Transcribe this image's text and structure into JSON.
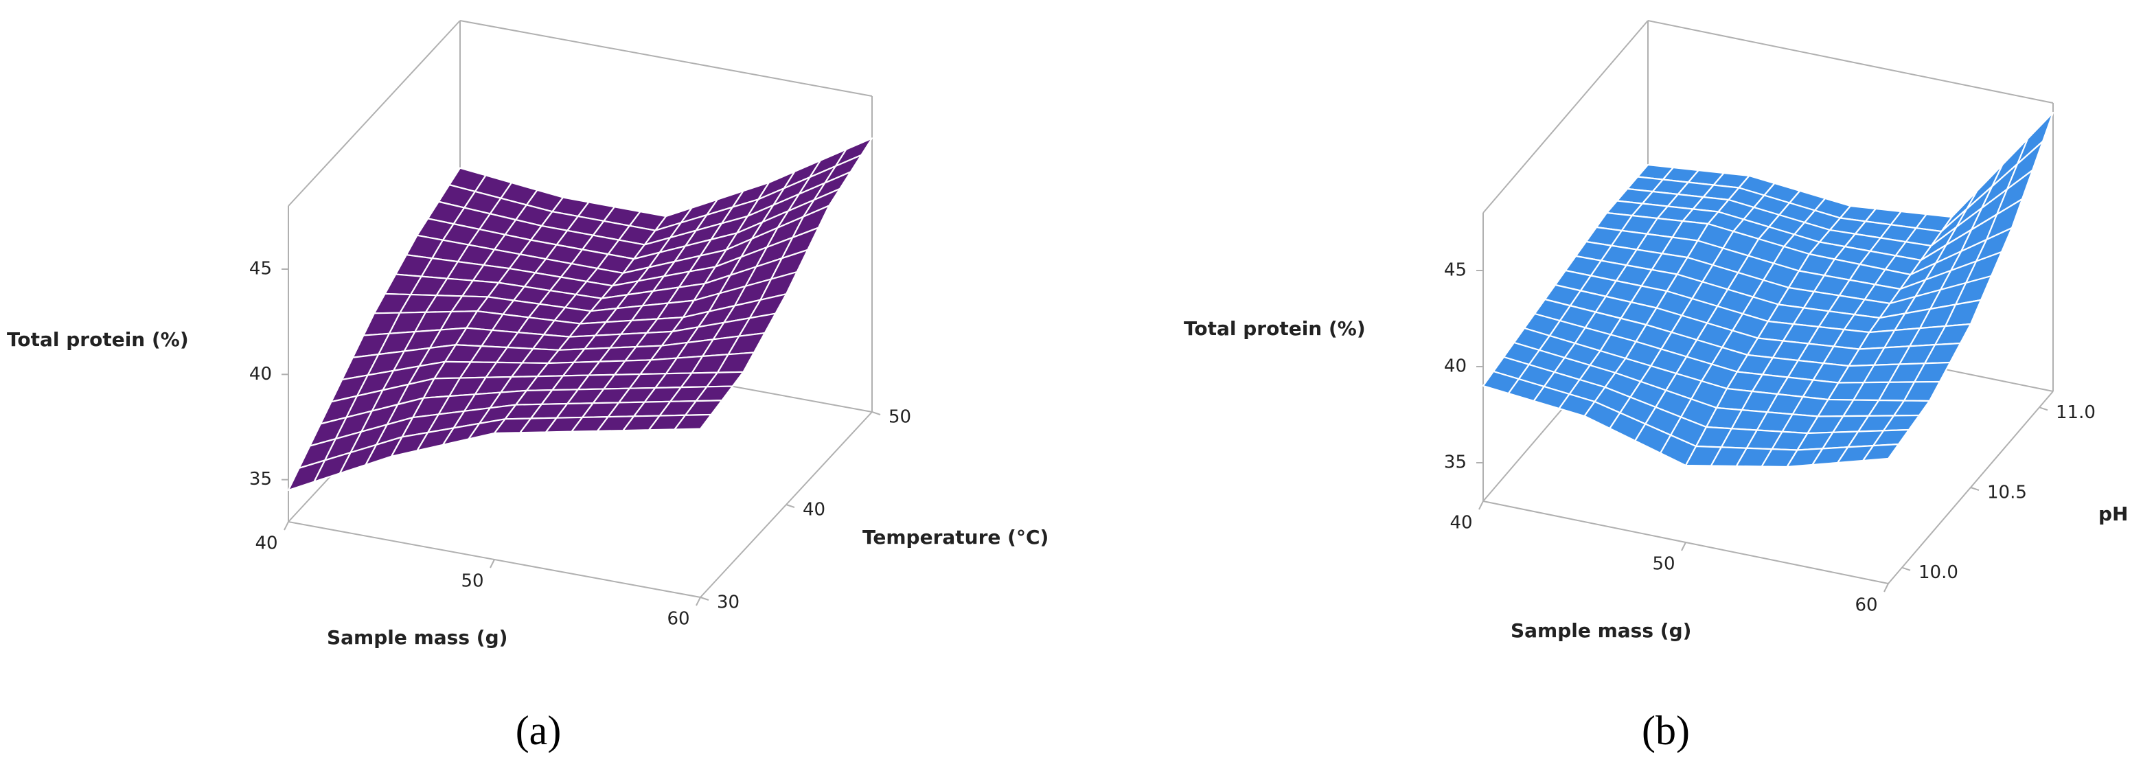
{
  "chart_data": [
    {
      "type": "surface",
      "panel_label": "(a)",
      "color": "#5b1a7a",
      "z_label": "Total protein (%)",
      "x_label": "Sample mass (g)",
      "y_label": "Temperature (°C)",
      "x": [
        40,
        45,
        50,
        55,
        60
      ],
      "y": [
        30,
        35,
        40,
        45,
        50
      ],
      "z": [
        [
          34.5,
          37,
          39,
          40,
          41
        ],
        [
          36.5,
          38.5,
          39.5,
          40.5,
          41.5
        ],
        [
          38.5,
          39.5,
          39.8,
          41,
          43
        ],
        [
          40,
          40,
          40,
          42,
          45
        ],
        [
          41,
          40.5,
          40.5,
          43,
          46
        ]
      ],
      "xlim": [
        40,
        60
      ],
      "ylim": [
        30,
        50
      ],
      "zlim": [
        33,
        48
      ],
      "xticks": [
        40,
        50,
        60
      ],
      "yticks": [
        30,
        40,
        50
      ],
      "zticks": [
        35,
        40,
        45
      ]
    },
    {
      "type": "surface",
      "panel_label": "(b)",
      "color": "#3b8de6",
      "z_label": "Total protein (%)",
      "x_label": "Sample mass (g)",
      "y_label": "pH",
      "x": [
        40,
        45,
        50,
        55,
        60
      ],
      "y": [
        9.9,
        10.2,
        10.5,
        10.8,
        11.1
      ],
      "z": [
        [
          39,
          38.5,
          37,
          38,
          39.5
        ],
        [
          39.5,
          39,
          38.5,
          39,
          40
        ],
        [
          40,
          40,
          39.5,
          40,
          41.5
        ],
        [
          40.5,
          41,
          40.5,
          40.5,
          44
        ],
        [
          40.5,
          41,
          40.5,
          41,
          47.5
        ]
      ],
      "xlim": [
        40,
        60
      ],
      "ylim": [
        9.9,
        11.1
      ],
      "zlim": [
        33,
        48
      ],
      "xticks": [
        40,
        50,
        60
      ],
      "yticks": [
        {
          "value": 10,
          "label": "10.0"
        },
        {
          "value": 10.5,
          "label": "10.5"
        },
        {
          "value": 11,
          "label": "11.0"
        }
      ],
      "zticks": [
        35,
        40,
        45
      ]
    }
  ]
}
